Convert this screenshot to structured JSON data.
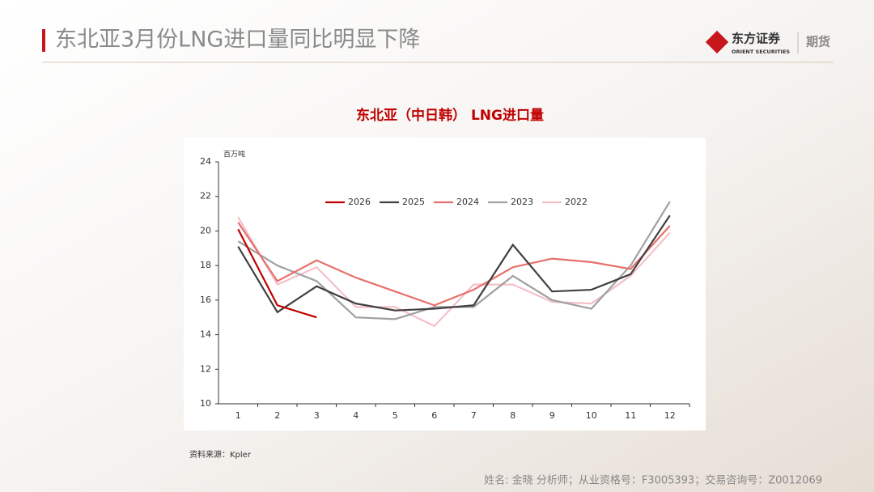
{
  "header": {
    "title": "东北亚3月份LNG进口量同比明显下降",
    "logo": "东方证券",
    "logo_en": "ORIENT SECURITIES",
    "division": "期货"
  },
  "chart_data": {
    "type": "line",
    "title": "东北亚（中日韩） LNG进口量",
    "y_unit": "百万吨",
    "categories": [
      "1",
      "2",
      "3",
      "4",
      "5",
      "6",
      "7",
      "8",
      "9",
      "10",
      "11",
      "12"
    ],
    "series": [
      {
        "name": "2026",
        "color": "#c00000",
        "values": [
          20.1,
          15.7,
          15.0,
          null,
          null,
          null,
          null,
          null,
          null,
          null,
          null,
          null
        ]
      },
      {
        "name": "2025",
        "color": "#404040",
        "values": [
          19.1,
          15.3,
          16.8,
          15.8,
          15.4,
          15.5,
          15.7,
          19.2,
          16.5,
          16.6,
          17.5,
          20.9
        ]
      },
      {
        "name": "2024",
        "color": "#e8706a",
        "values": [
          20.5,
          17.1,
          18.3,
          17.3,
          16.5,
          15.7,
          16.6,
          17.9,
          18.4,
          18.2,
          17.8,
          20.3
        ]
      },
      {
        "name": "2023",
        "color": "#a0a0a0",
        "values": [
          19.4,
          18.0,
          17.1,
          15.0,
          14.9,
          15.6,
          15.6,
          17.4,
          16.0,
          15.5,
          18.0,
          21.7
        ]
      },
      {
        "name": "2022",
        "color": "#f4c0c8",
        "values": [
          20.8,
          16.9,
          17.9,
          15.6,
          15.6,
          14.5,
          16.9,
          16.9,
          15.9,
          15.8,
          17.4,
          19.9
        ]
      }
    ],
    "ylim": [
      10,
      24
    ],
    "yticks": [
      10,
      12,
      14,
      16,
      18,
      20,
      22,
      24
    ],
    "legend": "top",
    "source": "资料来源：Kpler"
  },
  "footer": {
    "text": "姓名: 金晓 分析师；从业资格号：F3005393；交易咨询号：Z0012069"
  }
}
